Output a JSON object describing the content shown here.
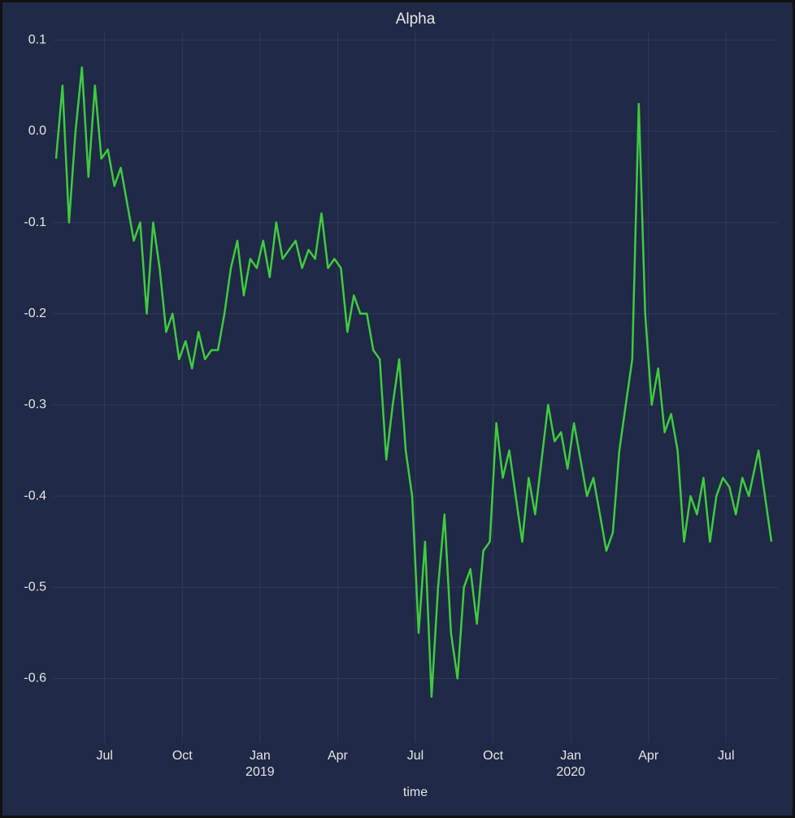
{
  "chart_data": {
    "type": "line",
    "title": "Alpha",
    "xlabel": "time",
    "x": [
      "2018-05",
      "2018-05",
      "2018-05",
      "2018-05",
      "2018-06",
      "2018-06",
      "2018-06",
      "2018-06",
      "2018-07",
      "2018-07",
      "2018-07",
      "2018-07",
      "2018-08",
      "2018-08",
      "2018-08",
      "2018-08",
      "2018-09",
      "2018-09",
      "2018-09",
      "2018-09",
      "2018-10",
      "2018-10",
      "2018-10",
      "2018-10",
      "2018-11",
      "2018-11",
      "2018-11",
      "2018-11",
      "2018-12",
      "2018-12",
      "2018-12",
      "2018-12",
      "2019-01",
      "2019-01",
      "2019-01",
      "2019-01",
      "2019-02",
      "2019-02",
      "2019-02",
      "2019-02",
      "2019-03",
      "2019-03",
      "2019-03",
      "2019-03",
      "2019-04",
      "2019-04",
      "2019-04",
      "2019-04",
      "2019-05",
      "2019-05",
      "2019-05",
      "2019-05",
      "2019-06",
      "2019-06",
      "2019-06",
      "2019-06",
      "2019-07",
      "2019-07",
      "2019-07",
      "2019-07",
      "2019-08",
      "2019-08",
      "2019-08",
      "2019-08",
      "2019-09",
      "2019-09",
      "2019-09",
      "2019-09",
      "2019-10",
      "2019-10",
      "2019-10",
      "2019-10",
      "2019-11",
      "2019-11",
      "2019-11",
      "2019-11",
      "2019-12",
      "2019-12",
      "2019-12",
      "2019-12",
      "2020-01",
      "2020-01",
      "2020-01",
      "2020-01",
      "2020-02",
      "2020-02",
      "2020-02",
      "2020-02",
      "2020-03",
      "2020-03",
      "2020-03",
      "2020-03",
      "2020-04",
      "2020-04",
      "2020-04",
      "2020-04",
      "2020-05",
      "2020-05",
      "2020-05",
      "2020-05",
      "2020-06",
      "2020-06",
      "2020-06",
      "2020-06",
      "2020-07",
      "2020-07",
      "2020-07",
      "2020-07",
      "2020-08",
      "2020-08"
    ],
    "values": [
      -0.03,
      0.05,
      -0.1,
      0.0,
      0.07,
      -0.05,
      0.05,
      -0.03,
      -0.02,
      -0.06,
      -0.04,
      -0.08,
      -0.12,
      -0.1,
      -0.2,
      -0.1,
      -0.15,
      -0.22,
      -0.2,
      -0.25,
      -0.23,
      -0.26,
      -0.22,
      -0.25,
      -0.24,
      -0.24,
      -0.2,
      -0.15,
      -0.12,
      -0.18,
      -0.14,
      -0.15,
      -0.12,
      -0.16,
      -0.1,
      -0.14,
      -0.13,
      -0.12,
      -0.15,
      -0.13,
      -0.14,
      -0.09,
      -0.15,
      -0.14,
      -0.15,
      -0.22,
      -0.18,
      -0.2,
      -0.2,
      -0.24,
      -0.25,
      -0.36,
      -0.3,
      -0.25,
      -0.35,
      -0.4,
      -0.55,
      -0.45,
      -0.62,
      -0.5,
      -0.42,
      -0.55,
      -0.6,
      -0.5,
      -0.48,
      -0.54,
      -0.46,
      -0.45,
      -0.32,
      -0.38,
      -0.35,
      -0.4,
      -0.45,
      -0.38,
      -0.42,
      -0.36,
      -0.3,
      -0.34,
      -0.33,
      -0.37,
      -0.32,
      -0.36,
      -0.4,
      -0.38,
      -0.42,
      -0.46,
      -0.44,
      -0.35,
      -0.3,
      -0.25,
      0.03,
      -0.2,
      -0.3,
      -0.26,
      -0.33,
      -0.31,
      -0.35,
      -0.45,
      -0.4,
      -0.42,
      -0.38,
      -0.45,
      -0.4,
      -0.38,
      -0.39,
      -0.42,
      -0.38,
      -0.4,
      -0.35,
      -0.45
    ],
    "color": "#3fcc3f",
    "xlim": [
      "2018-05",
      "2020-09"
    ],
    "xticks": [
      {
        "value": "2018-07",
        "label": "Jul"
      },
      {
        "value": "2018-10",
        "label": "Oct"
      },
      {
        "value": "2019-01",
        "label": "Jan"
      },
      {
        "value": "2019-04",
        "label": "Apr"
      },
      {
        "value": "2019-07",
        "label": "Jul"
      },
      {
        "value": "2019-10",
        "label": "Oct"
      },
      {
        "value": "2020-01",
        "label": "Jan"
      },
      {
        "value": "2020-04",
        "label": "Apr"
      },
      {
        "value": "2020-07",
        "label": "Jul"
      }
    ],
    "xtick_years": [
      {
        "value": "2019-01",
        "label": "2019"
      },
      {
        "value": "2020-01",
        "label": "2020"
      }
    ],
    "ylim": [
      -0.67,
      0.11
    ],
    "yticks": [
      0.1,
      {
        "value": 0,
        "label": "0.0"
      },
      -0.1,
      -0.2,
      -0.3,
      -0.4,
      -0.5,
      -0.6
    ],
    "grid": true
  }
}
